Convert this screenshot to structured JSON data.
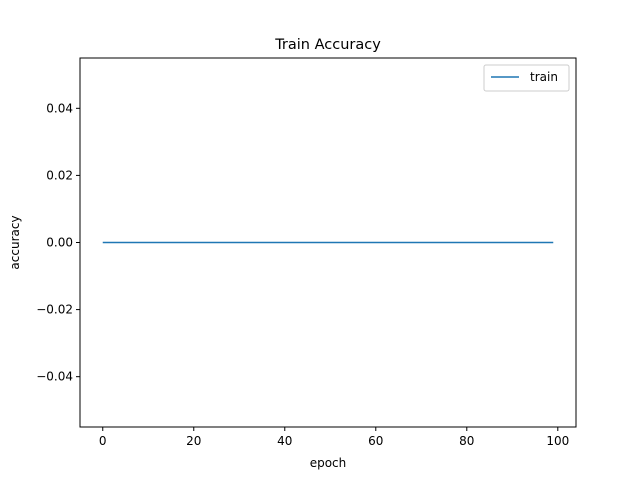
{
  "chart_data": {
    "type": "line",
    "title": "Train Accuracy",
    "xlabel": "epoch",
    "ylabel": "accuracy",
    "xlim": [
      -5,
      104
    ],
    "ylim": [
      -0.055,
      0.055
    ],
    "x_ticks": [
      0,
      20,
      40,
      60,
      80,
      100
    ],
    "y_ticks": [
      -0.04,
      -0.02,
      0.0,
      0.02,
      0.04
    ],
    "x_tick_labels": [
      "0",
      "20",
      "40",
      "60",
      "80",
      "100"
    ],
    "y_tick_labels": [
      "−0.04",
      "−0.02",
      "0.00",
      "0.02",
      "0.04"
    ],
    "grid": false,
    "legend_position": "top-right",
    "series": [
      {
        "name": "train",
        "color": "#1f77b4",
        "x": [
          0,
          99
        ],
        "y": [
          0.0,
          0.0
        ]
      }
    ]
  }
}
